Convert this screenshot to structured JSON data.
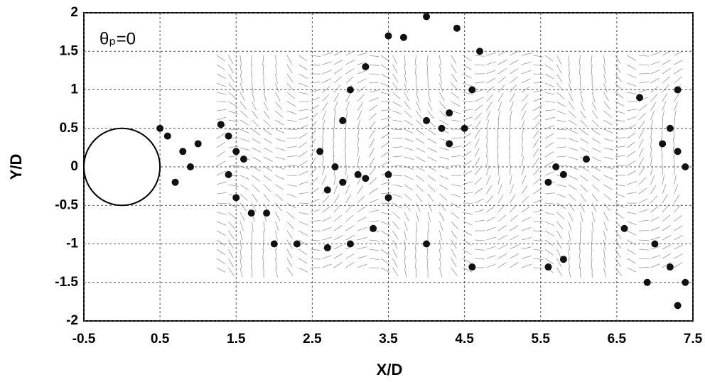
{
  "chart_data": {
    "type": "scatter",
    "x_label": "X/D",
    "y_label": "Y/D",
    "annotation": "θₚ=0",
    "xlim": [
      -0.5,
      7.5
    ],
    "xticks": [
      -0.5,
      0.5,
      1.5,
      2.5,
      3.5,
      4.5,
      5.5,
      6.5,
      7.5
    ],
    "ylim": [
      -2,
      2
    ],
    "yticks": [
      -2,
      -1.5,
      -1,
      -0.5,
      0,
      0.5,
      1,
      1.5,
      2
    ],
    "grid": true,
    "color": "#111111",
    "x": [
      0.6,
      0.8,
      0.9,
      0.7,
      0.5,
      1.0,
      1.3,
      1.4,
      1.5,
      1.6,
      1.4,
      1.5,
      1.7,
      1.9,
      2.0,
      2.3,
      2.7,
      3.0,
      3.3,
      3.5,
      3.5,
      2.6,
      2.8,
      2.9,
      3.1,
      2.7,
      3.2,
      2.9,
      3.0,
      3.2,
      3.5,
      3.7,
      4.0,
      4.4,
      4.7,
      4.6,
      4.3,
      4.2,
      4.5,
      4.0,
      4.3,
      4.0,
      4.6,
      5.6,
      5.8,
      5.6,
      5.7,
      5.8,
      6.1,
      7.1,
      7.3,
      7.4,
      7.2,
      7.0,
      7.2,
      7.4,
      7.3,
      6.8,
      7.3,
      6.6,
      6.9
    ],
    "y": [
      0.4,
      0.2,
      0.0,
      -0.2,
      0.5,
      0.3,
      0.55,
      0.4,
      0.2,
      0.1,
      -0.1,
      -0.4,
      -0.6,
      -0.6,
      -1.0,
      -1.0,
      -1.05,
      -1.0,
      -0.8,
      -0.4,
      -0.1,
      0.2,
      0.0,
      -0.2,
      -0.1,
      -0.3,
      -0.15,
      0.6,
      1.0,
      1.3,
      1.7,
      1.68,
      1.95,
      1.8,
      1.5,
      1.0,
      0.7,
      0.5,
      0.5,
      0.6,
      0.3,
      -1.0,
      -1.3,
      -1.3,
      -1.2,
      -0.2,
      0.0,
      -0.1,
      0.1,
      0.3,
      0.2,
      0.0,
      0.5,
      -1.0,
      -1.3,
      -1.5,
      -1.8,
      0.9,
      1.0,
      -0.8,
      -1.5
    ]
  }
}
